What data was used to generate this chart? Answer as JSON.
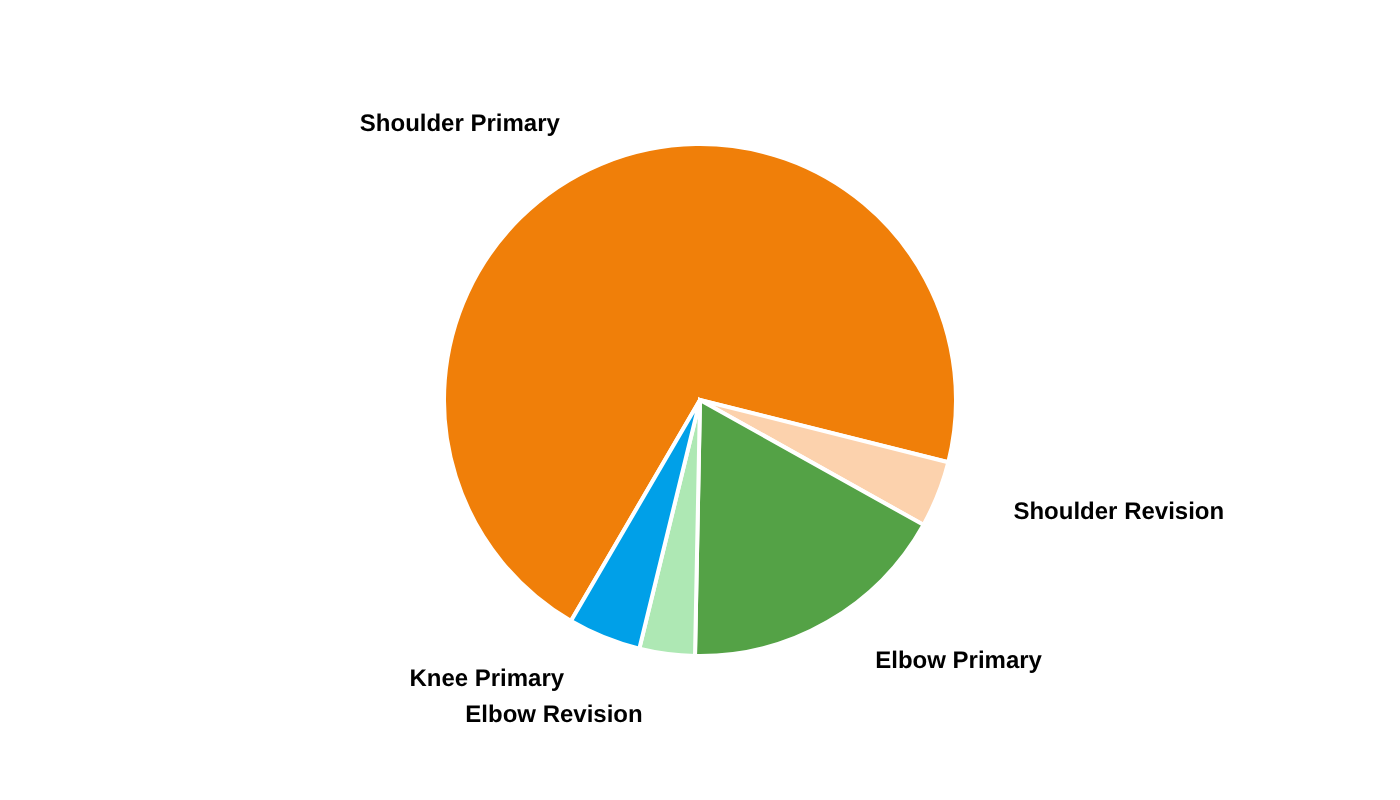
{
  "chart_data": {
    "type": "pie",
    "categories": [
      "Shoulder Primary",
      "Shoulder Revision",
      "Elbow Primary",
      "Elbow Revision",
      "Knee Primary"
    ],
    "values": [
      70.5,
      4.2,
      17.2,
      3.5,
      4.6
    ],
    "colors": [
      "#f07f09",
      "#fcd2ad",
      "#54a246",
      "#aee8b4",
      "#00a0e8"
    ]
  }
}
